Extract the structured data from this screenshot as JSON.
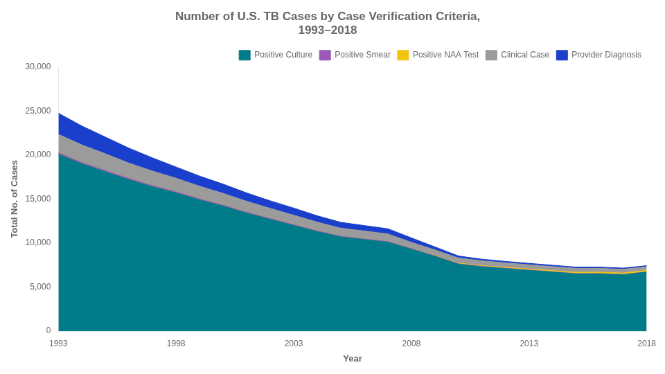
{
  "chart_data": {
    "type": "area",
    "stacked": true,
    "title": [
      "Number of U.S. TB Cases by Case Verification Criteria,",
      "1993–2018"
    ],
    "x_label": "Year",
    "y_label": "Total No. of Cases",
    "x": [
      1993,
      1994,
      1995,
      1996,
      1997,
      1998,
      1999,
      2000,
      2001,
      2002,
      2003,
      2004,
      2005,
      2006,
      2007,
      2008,
      2009,
      2010,
      2011,
      2012,
      2013,
      2014,
      2015,
      2016,
      2017,
      2018
    ],
    "series": [
      {
        "name": "Positive Culture",
        "color": "#007B8A",
        "values": [
          20107,
          19000,
          18100,
          17200,
          16400,
          15700,
          14900,
          14200,
          13400,
          12700,
          12000,
          11300,
          10700,
          10400,
          10100,
          9300,
          8500,
          7600,
          7300,
          7100,
          6900,
          6700,
          6500,
          6500,
          6400,
          6700
        ]
      },
      {
        "name": "Positive Smear",
        "color": "#9B59B6",
        "values": [
          150,
          150,
          140,
          135,
          130,
          120,
          110,
          100,
          95,
          90,
          85,
          80,
          75,
          70,
          65,
          60,
          55,
          50,
          45,
          42,
          40,
          38,
          36,
          35,
          34,
          33
        ]
      },
      {
        "name": "Positive NAA Test",
        "color": "#F1C40F",
        "values": [
          0,
          0,
          0,
          0,
          0,
          0,
          0,
          0,
          0,
          0,
          0,
          0,
          0,
          0,
          0,
          0,
          40,
          60,
          80,
          100,
          110,
          130,
          140,
          150,
          160,
          170
        ]
      },
      {
        "name": "Clinical Case",
        "color": "#9B9B9B",
        "values": [
          2100,
          2000,
          1900,
          1750,
          1650,
          1550,
          1450,
          1350,
          1250,
          1150,
          1080,
          1000,
          920,
          900,
          870,
          720,
          630,
          590,
          555,
          505,
          480,
          460,
          445,
          435,
          425,
          400
        ]
      },
      {
        "name": "Provider Diagnosis",
        "color": "#1A3FCC",
        "values": [
          2400,
          2150,
          1900,
          1700,
          1500,
          1270,
          1150,
          1050,
          950,
          860,
          810,
          720,
          660,
          620,
          590,
          510,
          340,
          230,
          185,
          170,
          165,
          155,
          148,
          148,
          138,
          128
        ]
      }
    ],
    "xlim": [
      1993,
      2018
    ],
    "xticks": [
      1993,
      1998,
      2003,
      2008,
      2013,
      2018
    ],
    "ylim": [
      0,
      30000
    ],
    "yticks": [
      0,
      {
        "value": 5000,
        "label": "5,000"
      },
      {
        "value": 10000,
        "label": "10,000"
      },
      {
        "value": 15000,
        "label": "15,000"
      },
      {
        "value": 20000,
        "label": "20,000"
      },
      {
        "value": 25000,
        "label": "25,000"
      },
      {
        "value": 30000,
        "label": "30,000"
      }
    ],
    "grid": false,
    "legend": "upper right"
  }
}
